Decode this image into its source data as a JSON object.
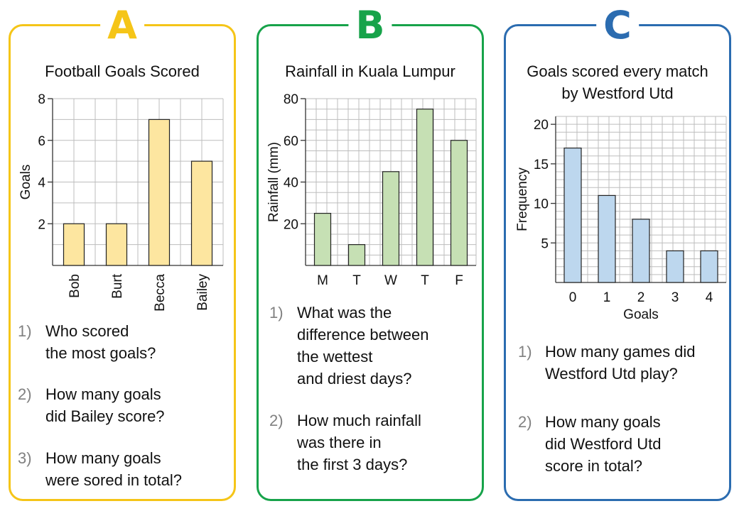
{
  "panels": [
    {
      "badge": "A",
      "accent": "#f5c518",
      "title": "Football Goals Scored",
      "questions": [
        {
          "num": "1)",
          "text": "Who scored\nthe most goals?"
        },
        {
          "num": "2)",
          "text": "How many goals\ndid Bailey score?"
        },
        {
          "num": "3)",
          "text": "How many goals\nwere sored in total?"
        }
      ]
    },
    {
      "badge": "B",
      "accent": "#17a34a",
      "title": "Rainfall in Kuala Lumpur",
      "questions": [
        {
          "num": "1)",
          "text": "What was the\ndifference between\nthe wettest\nand driest days?"
        },
        {
          "num": "2)",
          "text": "How much rainfall\nwas there in\nthe first 3 days?"
        }
      ]
    },
    {
      "badge": "C",
      "accent": "#2b6cb0",
      "title": "Goals scored every match\nby Westford Utd",
      "questions": [
        {
          "num": "1)",
          "text": "How many games did\nWestford Utd play?"
        },
        {
          "num": "2)",
          "text": "How many goals\ndid Westford Utd\nscore in total?"
        }
      ]
    }
  ],
  "chart_data": [
    {
      "type": "bar",
      "title": "Football Goals Scored",
      "categories": [
        "Bob",
        "Burt",
        "Becca",
        "Bailey"
      ],
      "values": [
        2,
        2,
        7,
        5
      ],
      "ylabel": "Goals",
      "xlabel": "",
      "ylim": [
        0,
        8
      ],
      "yticks": [
        2,
        4,
        6,
        8
      ],
      "grid": true,
      "bar_color": "#fde6a0",
      "tick_label_rotation": "vertical"
    },
    {
      "type": "bar",
      "title": "Rainfall in Kuala Lumpur",
      "categories": [
        "M",
        "T",
        "W",
        "T",
        "F"
      ],
      "values": [
        25,
        10,
        45,
        75,
        60
      ],
      "ylabel": "Rainfall (mm)",
      "xlabel": "",
      "ylim": [
        0,
        80
      ],
      "yticks": [
        20,
        40,
        60,
        80
      ],
      "grid": true,
      "bar_color": "#c6e0b4"
    },
    {
      "type": "bar",
      "title": "Goals scored every match by Westford Utd",
      "categories": [
        "0",
        "1",
        "2",
        "3",
        "4"
      ],
      "values": [
        17,
        11,
        8,
        4,
        4
      ],
      "ylabel": "Frequency",
      "xlabel": "Goals",
      "ylim": [
        0,
        21
      ],
      "yticks": [
        5,
        10,
        15,
        20
      ],
      "grid": true,
      "bar_color": "#bdd7ee"
    }
  ]
}
